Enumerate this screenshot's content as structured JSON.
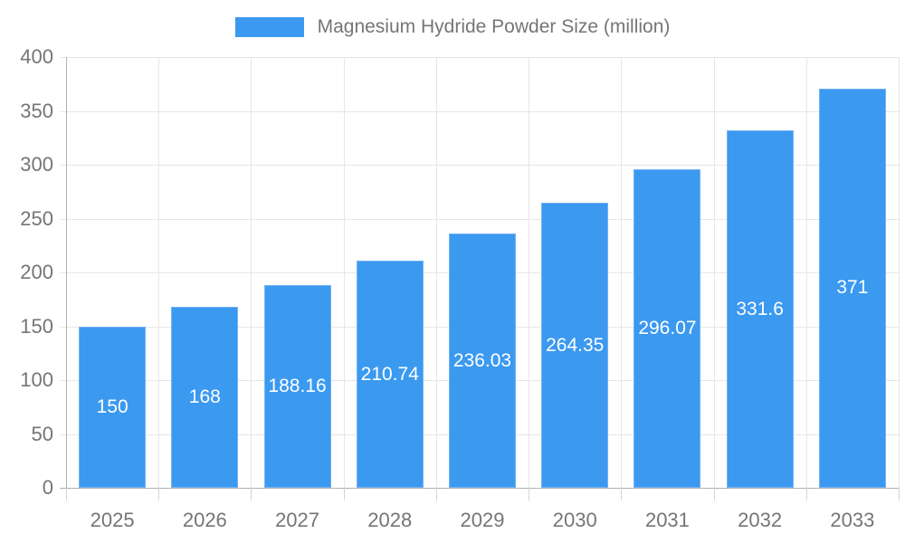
{
  "legend": {
    "label": "Magnesium Hydride Powder Size (million)"
  },
  "chart_data": {
    "type": "bar",
    "title": "Magnesium Hydride Powder Size (million)",
    "categories": [
      "2025",
      "2026",
      "2027",
      "2028",
      "2029",
      "2030",
      "2031",
      "2032",
      "2033"
    ],
    "values": [
      150,
      168,
      188.16,
      210.74,
      236.03,
      264.35,
      296.07,
      331.6,
      371
    ],
    "value_labels": [
      "150",
      "168",
      "188.16",
      "210.74",
      "236.03",
      "264.35",
      "296.07",
      "331.6",
      "371"
    ],
    "xlabel": "",
    "ylabel": "",
    "ylim": [
      0,
      400
    ],
    "ytick_step": 50,
    "yticks": [
      0,
      50,
      100,
      150,
      200,
      250,
      300,
      350,
      400
    ],
    "grid": true,
    "legend_position": "top",
    "value_label_position": "center-inside",
    "colors": {
      "bar": "#3b99f0",
      "bar_border": "#74b3f3",
      "grid": "#e6e6e6",
      "axis": "#b0b0b0",
      "category_tick": "#d4d4d4",
      "text": "#757575",
      "value_label": "#ffffff",
      "background": "#ffffff"
    }
  }
}
